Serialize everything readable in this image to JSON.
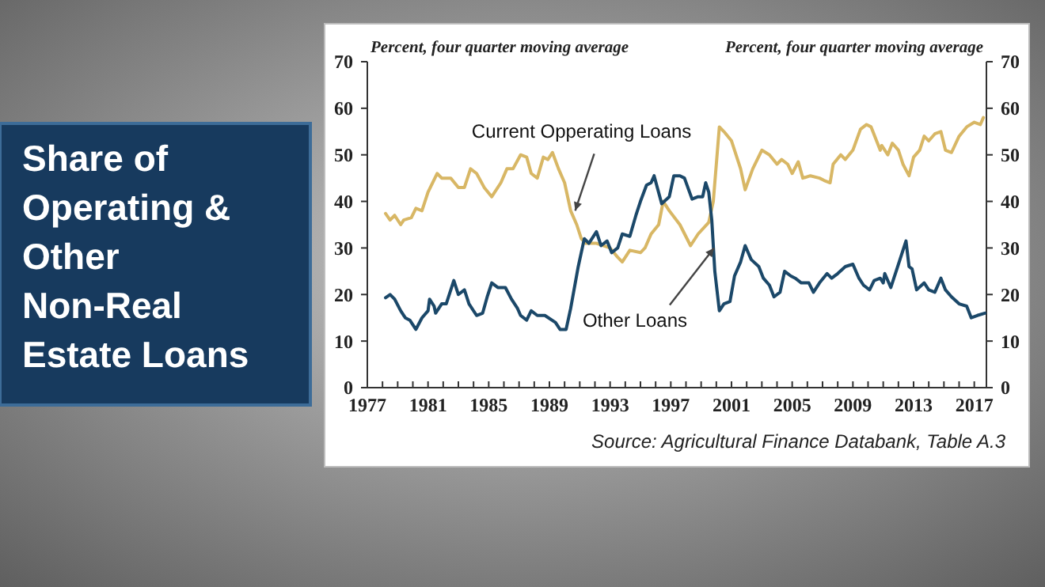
{
  "chart_data": {
    "type": "line",
    "title": "Share of Operating & Other Non-Real Estate Loans",
    "ylabel": "Percent, four quarter moving average",
    "y2label": "Percent, four quarter moving average",
    "xlim": [
      1977,
      2017.8
    ],
    "xticks": [
      1977,
      {
        "value": 1978,
        "label": null
      },
      {
        "value": 1979,
        "label": null
      },
      {
        "value": 1980,
        "label": null
      },
      1981,
      {
        "value": 1982,
        "label": null
      },
      {
        "value": 1983,
        "label": null
      },
      {
        "value": 1984,
        "label": null
      },
      1985,
      {
        "value": 1986,
        "label": null
      },
      {
        "value": 1987,
        "label": null
      },
      {
        "value": 1988,
        "label": null
      },
      1989,
      {
        "value": 1990,
        "label": null
      },
      {
        "value": 1991,
        "label": null
      },
      {
        "value": 1992,
        "label": null
      },
      1993,
      {
        "value": 1994,
        "label": null
      },
      {
        "value": 1995,
        "label": null
      },
      {
        "value": 1996,
        "label": null
      },
      1997,
      {
        "value": 1998,
        "label": null
      },
      {
        "value": 1999,
        "label": null
      },
      {
        "value": 2000,
        "label": null
      },
      2001,
      {
        "value": 2002,
        "label": null
      },
      {
        "value": 2003,
        "label": null
      },
      {
        "value": 2004,
        "label": null
      },
      2005,
      {
        "value": 2006,
        "label": null
      },
      {
        "value": 2007,
        "label": null
      },
      {
        "value": 2008,
        "label": null
      },
      2009,
      {
        "value": 2010,
        "label": null
      },
      {
        "value": 2011,
        "label": null
      },
      {
        "value": 2012,
        "label": null
      },
      2013,
      {
        "value": 2014,
        "label": null
      },
      {
        "value": 2015,
        "label": null
      },
      {
        "value": 2016,
        "label": null
      },
      2017
    ],
    "ylim": [
      0,
      70
    ],
    "yticks": [
      0,
      10,
      20,
      30,
      40,
      50,
      60,
      70
    ],
    "y2lim": [
      0,
      70
    ],
    "y2ticks": [
      0,
      10,
      20,
      30,
      40,
      50,
      60,
      70
    ],
    "grid": false,
    "marker": "none",
    "line_style": "solid",
    "series": [
      {
        "color": "#d8b765",
        "x": [
          1978.2,
          1978.5,
          1978.8,
          1979.2,
          1979.4,
          1979.9,
          1980.2,
          1980.6,
          1981,
          1981.6,
          1981.9,
          1982.5,
          1983,
          1983.4,
          1983.8,
          1984.2,
          1984.7,
          1985.2,
          1985.8,
          1986.2,
          1986.6,
          1987.1,
          1987.5,
          1987.8,
          1988.2,
          1988.6,
          1988.9,
          1989.2,
          1989.6,
          1990,
          1990.4,
          1990.8,
          1991.1,
          1991.4,
          1992.1,
          1993,
          1993.5,
          1993.8,
          1994.3,
          1995,
          1995.3,
          1995.7,
          1996.2,
          1996.5,
          1996.9,
          1997.6,
          1998.3,
          1998.8,
          1999.5,
          1999.8,
          2000.2,
          2000.5,
          2001,
          2001.6,
          2001.9,
          2002.4,
          2003,
          2003.5,
          2004,
          2004.3,
          2004.7,
          2005,
          2005.4,
          2005.7,
          2006.2,
          2006.8,
          2007.1,
          2007.5,
          2007.7,
          2008.2,
          2008.5,
          2009,
          2009.5,
          2009.9,
          2010.2,
          2010.8,
          2010.9,
          2011.3,
          2011.6,
          2012,
          2012.3,
          2012.7,
          2013,
          2013.4,
          2013.7,
          2014,
          2014.4,
          2014.8,
          2015.1,
          2015.5,
          2016,
          2016.5,
          2017,
          2017.4,
          2017.6
        ],
        "values": [
          37.4,
          36,
          37,
          35,
          36,
          36.5,
          38.5,
          38,
          42,
          46,
          45,
          45,
          43,
          43,
          47,
          46,
          43,
          41,
          44,
          47,
          47,
          50,
          49.5,
          46,
          45,
          49.5,
          49,
          50.5,
          47,
          44,
          38,
          35,
          32,
          31,
          31,
          30,
          28,
          27,
          29.5,
          29,
          30,
          33,
          35,
          40,
          38,
          35,
          30.5,
          33,
          35.5,
          40,
          56,
          55,
          53,
          47,
          42.5,
          47,
          51,
          50,
          48,
          49,
          48,
          46,
          48.5,
          45,
          45.5,
          45,
          44.5,
          44,
          48,
          50,
          49,
          51,
          55.5,
          56.5,
          56,
          51,
          52,
          50,
          52.5,
          51,
          48,
          45.5,
          49.5,
          51,
          54,
          53,
          54.5,
          55,
          51,
          50.5,
          54,
          56,
          57,
          56.5,
          58
        ]
      },
      {
        "color": "#1b4869",
        "x": [
          1978.2,
          1978.5,
          1978.8,
          1979.2,
          1979.5,
          1979.8,
          1980.2,
          1980.6,
          1981,
          1981.1,
          1981.4,
          1981.5,
          1981.9,
          1982.2,
          1982.7,
          1983,
          1983.4,
          1983.7,
          1984.2,
          1984.6,
          1984.9,
          1985.2,
          1985.6,
          1986.1,
          1986.5,
          1986.9,
          1987.1,
          1987.5,
          1987.8,
          1988.2,
          1988.7,
          1989.4,
          1989.7,
          1990.1,
          1990.4,
          1990.9,
          1991.3,
          1991.6,
          1992.1,
          1992.4,
          1992.8,
          1993.1,
          1993.5,
          1993.8,
          1994.3,
          1994.7,
          1995,
          1995.4,
          1995.7,
          1995.9,
          1996.4,
          1996.9,
          1997.2,
          1997.6,
          1997.9,
          1998.4,
          1998.8,
          1999.1,
          1999.3,
          1999.5,
          1999.7,
          1999.9,
          2000.2,
          2000.5,
          2000.9,
          2001.2,
          2001.6,
          2001.9,
          2002.3,
          2002.8,
          2003.1,
          2003.5,
          2003.8,
          2004.2,
          2004.5,
          2004.9,
          2005.2,
          2005.6,
          2006.1,
          2006.4,
          2006.8,
          2007.3,
          2007.6,
          2008,
          2008.5,
          2009,
          2009.4,
          2009.7,
          2010.1,
          2010.4,
          2010.8,
          2011,
          2011.1,
          2011.5,
          2012,
          2012.5,
          2012.7,
          2012.9,
          2013.2,
          2013.7,
          2014,
          2014.4,
          2014.8,
          2015.1,
          2015.5,
          2016,
          2016.5,
          2016.8,
          2017.2,
          2017.7
        ],
        "values": [
          19.3,
          20,
          19,
          16.5,
          15,
          14.5,
          12.5,
          15,
          16.5,
          19,
          17.5,
          16,
          18,
          18,
          23,
          20,
          21,
          18,
          15.5,
          16,
          19.5,
          22.5,
          21.5,
          21.5,
          19,
          17,
          15.5,
          14.5,
          16.5,
          15.5,
          15.5,
          14,
          12.5,
          12.5,
          17,
          26,
          32,
          31,
          33.5,
          30.5,
          31.5,
          29,
          30,
          33,
          32.5,
          37,
          40,
          43.5,
          44,
          45.5,
          39.5,
          41,
          45.5,
          45.5,
          45,
          40.5,
          41,
          41,
          44,
          42,
          36,
          25,
          16.5,
          18,
          18.5,
          24,
          27,
          30.5,
          27.5,
          26,
          23.5,
          22,
          19.5,
          20.5,
          25,
          24,
          23.5,
          22.5,
          22.5,
          20.5,
          22.5,
          24.5,
          23.5,
          24.5,
          26,
          26.5,
          23.5,
          22,
          21,
          23,
          23.5,
          22.5,
          24.5,
          21.5,
          26.5,
          31.5,
          26,
          25.5,
          21,
          22.5,
          21,
          20.5,
          23.5,
          21,
          19.5,
          18,
          17.5,
          15,
          15.5,
          16
        ]
      }
    ],
    "annotations": [
      {
        "text": "Current Opperating Loans",
        "x": 1990.7,
        "y": 38
      },
      {
        "text": "Other Loans",
        "x": 1999.85,
        "y": 30
      },
      "Source: Agricultural Finance Databank, Table A.3"
    ]
  }
}
